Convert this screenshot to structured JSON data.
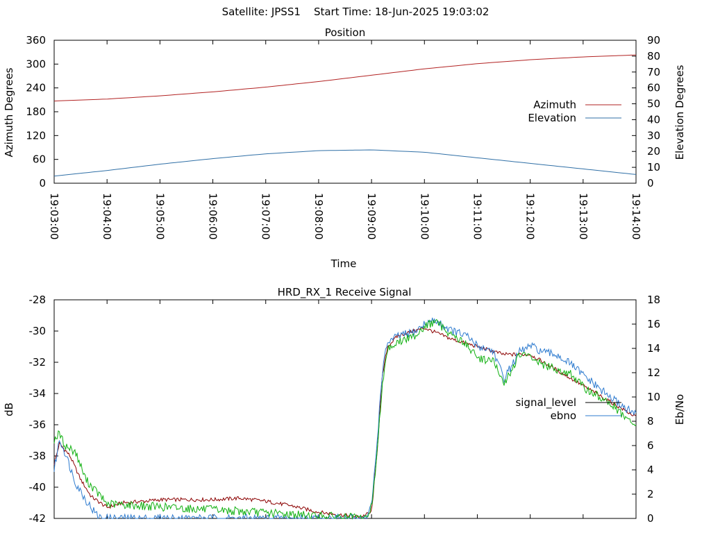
{
  "header": {
    "text": "Satellite: JPSS1    Start Time: 18-Jun-2025 19:03:02"
  },
  "chart_data": [
    {
      "type": "line",
      "title": "Position",
      "xlabel": "Time",
      "ylabel": "Azimuth Degrees",
      "y2label": "Elevation Degrees",
      "x_ticks": [
        "19:03:00",
        "19:04:00",
        "19:05:00",
        "19:06:00",
        "19:07:00",
        "19:08:00",
        "19:09:00",
        "19:10:00",
        "19:11:00",
        "19:12:00",
        "19:13:00",
        "19:14:00"
      ],
      "xlim_minutes": [
        0,
        11
      ],
      "ylim": [
        0,
        360
      ],
      "y_ticks": [
        "0",
        "60",
        "120",
        "180",
        "240",
        "300",
        "360"
      ],
      "y2lim": [
        0,
        90
      ],
      "y2_ticks": [
        "0",
        "10",
        "20",
        "30",
        "40",
        "50",
        "60",
        "70",
        "80",
        "90"
      ],
      "grid": true,
      "legend_position": "right",
      "series": [
        {
          "name": "Azimuth",
          "axis": "y",
          "color": "#b22222",
          "x": [
            0,
            1,
            2,
            3,
            4,
            5,
            6,
            7,
            8,
            9,
            10,
            11
          ],
          "values": [
            207,
            212,
            220,
            230,
            242,
            256,
            272,
            288,
            301,
            311,
            318,
            323
          ]
        },
        {
          "name": "Elevation",
          "axis": "y2",
          "color": "#2f6fa6",
          "x": [
            0,
            1,
            2,
            3,
            4,
            5,
            6,
            7,
            8,
            9,
            10,
            11
          ],
          "values": [
            4.5,
            8,
            12,
            15.5,
            18.5,
            20.5,
            21,
            19.5,
            16,
            12.5,
            9,
            5.5
          ]
        }
      ]
    },
    {
      "type": "line",
      "title": "HRD_RX_1 Receive Signal",
      "ylabel": "dB",
      "y2label": "Eb/No",
      "xlim_minutes": [
        0,
        11
      ],
      "ylim": [
        -42,
        -28
      ],
      "y_ticks": [
        "-42",
        "-40",
        "-38",
        "-36",
        "-34",
        "-32",
        "-30",
        "-28"
      ],
      "y2lim": [
        0,
        18
      ],
      "y2_ticks": [
        "0",
        "2",
        "4",
        "6",
        "8",
        "10",
        "12",
        "14",
        "16",
        "18"
      ],
      "grid": true,
      "legend_position": "right",
      "series": [
        {
          "name": "signal_level",
          "axis": "y",
          "color": "#8b0000",
          "x": [
            0,
            0.1,
            0.3,
            0.5,
            0.7,
            1.0,
            1.3,
            1.7,
            2.0,
            2.5,
            3.0,
            3.5,
            4.0,
            4.5,
            5.0,
            5.5,
            5.8,
            6.0,
            6.1,
            6.2,
            6.3,
            6.5,
            7.0,
            7.5,
            8.0,
            8.5,
            9.0,
            9.5,
            10.0,
            10.5,
            11.0
          ],
          "values": [
            -38.5,
            -37.2,
            -38.0,
            -39.5,
            -40.6,
            -41.3,
            -41.0,
            -40.9,
            -40.8,
            -40.8,
            -40.8,
            -40.7,
            -40.9,
            -41.2,
            -41.6,
            -41.8,
            -41.9,
            -41.6,
            -38.0,
            -33.0,
            -31.0,
            -30.3,
            -29.8,
            -30.5,
            -31.0,
            -31.5,
            -31.5,
            -32.5,
            -33.5,
            -34.5,
            -35.5
          ]
        },
        {
          "name": "ebno",
          "axis": "y2",
          "color": "#2e7bcf",
          "x": [
            0,
            0.1,
            0.2,
            0.4,
            0.6,
            0.8,
            0.9,
            5.9,
            6.0,
            6.1,
            6.2,
            6.3,
            6.5,
            6.8,
            7.0,
            7.2,
            7.5,
            7.8,
            8.0,
            8.3,
            8.5,
            8.8,
            9.0,
            9.3,
            9.5,
            9.8,
            10.0,
            10.5,
            11.0
          ],
          "values": [
            4,
            6.5,
            5.5,
            3,
            1.5,
            0.3,
            0,
            0,
            1,
            6,
            12,
            14.5,
            15,
            15.3,
            16,
            16.3,
            15.5,
            15,
            14.2,
            13.8,
            11.5,
            13.7,
            14.2,
            13.6,
            13.5,
            12.6,
            11.8,
            10,
            8.5
          ]
        },
        {
          "name": "",
          "axis": "y2",
          "color": "#10b010",
          "x": [
            0,
            0.1,
            0.2,
            0.4,
            0.6,
            0.8,
            1.0,
            5.9,
            6.0,
            6.1,
            6.2,
            6.3,
            6.5,
            6.8,
            7.0,
            7.2,
            7.5,
            7.8,
            8.0,
            8.3,
            8.5,
            8.8,
            9.0,
            9.3,
            9.5,
            9.8,
            10.0,
            10.5,
            11.0
          ],
          "values": [
            6.5,
            7,
            6,
            5.5,
            3.2,
            2.2,
            1.2,
            0,
            1,
            5,
            11,
            14,
            14.5,
            15,
            15.8,
            16.2,
            15.2,
            14.3,
            13.2,
            13,
            11,
            13.5,
            13.3,
            12.5,
            12.3,
            11.8,
            10.8,
            9.5,
            7.5
          ]
        }
      ]
    }
  ]
}
